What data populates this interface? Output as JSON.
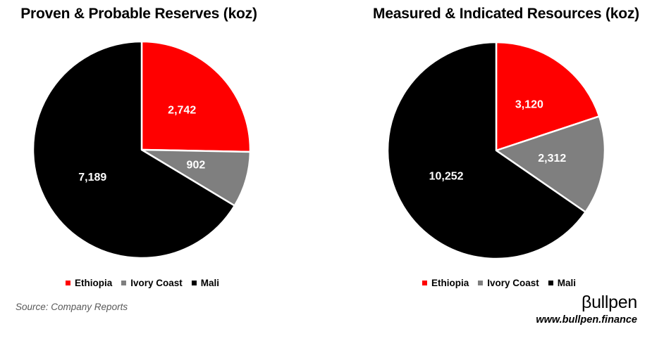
{
  "page": {
    "background": "#FFFFFF"
  },
  "chart_data": [
    {
      "type": "pie",
      "title": "Proven & Probable Reserves (koz)",
      "categories": [
        "Ethiopia",
        "Ivory Coast",
        "Mali"
      ],
      "values": [
        2742,
        902,
        7189
      ],
      "value_labels": [
        "2,742",
        "902",
        "7,189"
      ],
      "colors": [
        "#FF0000",
        "#7F7F7F",
        "#000000"
      ],
      "slice_border_color": "#FFFFFF",
      "label_color": "#FFFFFF",
      "start_angle_deg": 0,
      "direction": "clockwise",
      "legend_position": "bottom"
    },
    {
      "type": "pie",
      "title": "Measured & Indicated Resources (koz)",
      "categories": [
        "Ethiopia",
        "Ivory Coast",
        "Mali"
      ],
      "values": [
        3120,
        2312,
        10252
      ],
      "value_labels": [
        "3,120",
        "2,312",
        "10,252"
      ],
      "colors": [
        "#FF0000",
        "#7F7F7F",
        "#000000"
      ],
      "slice_border_color": "#FFFFFF",
      "label_color": "#FFFFFF",
      "start_angle_deg": 0,
      "direction": "clockwise",
      "legend_position": "bottom"
    }
  ],
  "footer": {
    "source": "Source: Company Reports",
    "logo": "βullpen",
    "website": "www.bullpen.finance"
  }
}
